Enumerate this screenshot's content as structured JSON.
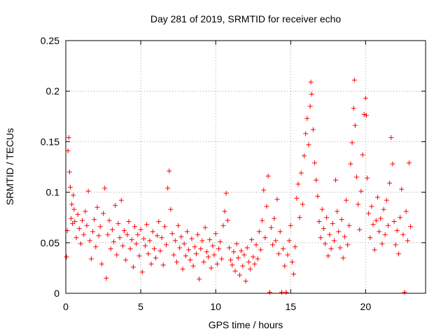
{
  "chart_data": {
    "type": "scatter",
    "title": "Day 281 of 2019, SRMTID for receiver echo",
    "xlabel": "GPS time / hours",
    "ylabel": "SRMTID / TECUs",
    "xlim": [
      0,
      24
    ],
    "ylim": [
      0,
      0.25
    ],
    "x_ticks": [
      0,
      5,
      10,
      15,
      20
    ],
    "x_tick_labels": [
      "0",
      "5",
      "10",
      "15",
      "20"
    ],
    "y_ticks": [
      0,
      0.05,
      0.1,
      0.15,
      0.2,
      0.25
    ],
    "y_tick_labels": [
      "0",
      "0.05",
      "0.1",
      "0.15",
      "0.2",
      "0.25"
    ],
    "grid": true,
    "marker": "+",
    "series": [
      {
        "name": "SRMTID",
        "color": "#ff0000",
        "points": [
          [
            0.05,
            0.036
          ],
          [
            0.1,
            0.062
          ],
          [
            0.15,
            0.141
          ],
          [
            0.2,
            0.154
          ],
          [
            0.25,
            0.12
          ],
          [
            0.3,
            0.105
          ],
          [
            0.35,
            0.074
          ],
          [
            0.4,
            0.088
          ],
          [
            0.45,
            0.069
          ],
          [
            0.5,
            0.097
          ],
          [
            0.55,
            0.083
          ],
          [
            0.6,
            0.071
          ],
          [
            0.7,
            0.055
          ],
          [
            0.8,
            0.078
          ],
          [
            0.9,
            0.064
          ],
          [
            1.0,
            0.049
          ],
          [
            1.1,
            0.072
          ],
          [
            1.2,
            0.058
          ],
          [
            1.3,
            0.081
          ],
          [
            1.4,
            0.067
          ],
          [
            1.5,
            0.101
          ],
          [
            1.6,
            0.052
          ],
          [
            1.7,
            0.034
          ],
          [
            1.8,
            0.061
          ],
          [
            1.9,
            0.073
          ],
          [
            2.0,
            0.046
          ],
          [
            2.1,
            0.085
          ],
          [
            2.2,
            0.057
          ],
          [
            2.3,
            0.066
          ],
          [
            2.4,
            0.029
          ],
          [
            2.5,
            0.079
          ],
          [
            2.6,
            0.104
          ],
          [
            2.7,
            0.015
          ],
          [
            2.8,
            0.058
          ],
          [
            2.9,
            0.072
          ],
          [
            3.0,
            0.044
          ],
          [
            3.1,
            0.063
          ],
          [
            3.2,
            0.051
          ],
          [
            3.3,
            0.087
          ],
          [
            3.4,
            0.038
          ],
          [
            3.5,
            0.069
          ],
          [
            3.6,
            0.055
          ],
          [
            3.7,
            0.092
          ],
          [
            3.8,
            0.047
          ],
          [
            3.9,
            0.062
          ],
          [
            4.0,
            0.033
          ],
          [
            4.1,
            0.058
          ],
          [
            4.2,
            0.071
          ],
          [
            4.3,
            0.044
          ],
          [
            4.4,
            0.053
          ],
          [
            4.5,
            0.026
          ],
          [
            4.6,
            0.066
          ],
          [
            4.7,
            0.049
          ],
          [
            4.8,
            0.058
          ],
          [
            4.9,
            0.037
          ],
          [
            5.0,
            0.063
          ],
          [
            5.1,
            0.021
          ],
          [
            5.2,
            0.054
          ],
          [
            5.3,
            0.047
          ],
          [
            5.4,
            0.068
          ],
          [
            5.5,
            0.039
          ],
          [
            5.6,
            0.052
          ],
          [
            5.7,
            0.029
          ],
          [
            5.8,
            0.061
          ],
          [
            5.9,
            0.044
          ],
          [
            6.0,
            0.035
          ],
          [
            6.1,
            0.057
          ],
          [
            6.2,
            0.071
          ],
          [
            6.3,
            0.042
          ],
          [
            6.4,
            0.055
          ],
          [
            6.5,
            0.028
          ],
          [
            6.6,
            0.066
          ],
          [
            6.7,
            0.048
          ],
          [
            6.8,
            0.104
          ],
          [
            6.9,
            0.121
          ],
          [
            7.0,
            0.083
          ],
          [
            7.1,
            0.059
          ],
          [
            7.2,
            0.038
          ],
          [
            7.3,
            0.052
          ],
          [
            7.4,
            0.031
          ],
          [
            7.5,
            0.067
          ],
          [
            7.6,
            0.045
          ],
          [
            7.7,
            0.056
          ],
          [
            7.8,
            0.024
          ],
          [
            7.9,
            0.049
          ],
          [
            8.0,
            0.037
          ],
          [
            8.1,
            0.061
          ],
          [
            8.2,
            0.043
          ],
          [
            8.3,
            0.033
          ],
          [
            8.4,
            0.054
          ],
          [
            8.5,
            0.027
          ],
          [
            8.6,
            0.046
          ],
          [
            8.7,
            0.039
          ],
          [
            8.8,
            0.058
          ],
          [
            8.9,
            0.014
          ],
          [
            9.0,
            0.044
          ],
          [
            9.1,
            0.052
          ],
          [
            9.2,
            0.031
          ],
          [
            9.3,
            0.065
          ],
          [
            9.4,
            0.041
          ],
          [
            9.5,
            0.036
          ],
          [
            9.6,
            0.053
          ],
          [
            9.7,
            0.025
          ],
          [
            9.8,
            0.047
          ],
          [
            9.9,
            0.038
          ],
          [
            10.0,
            0.059
          ],
          [
            10.1,
            0.029
          ],
          [
            10.2,
            0.044
          ],
          [
            10.3,
            0.051
          ],
          [
            10.4,
            0.034
          ],
          [
            10.5,
            0.067
          ],
          [
            10.6,
            0.081
          ],
          [
            10.7,
            0.099
          ],
          [
            10.8,
            0.072
          ],
          [
            10.9,
            0.045
          ],
          [
            11.0,
            0.033
          ],
          [
            11.1,
            0.028
          ],
          [
            11.2,
            0.041
          ],
          [
            11.3,
            0.022
          ],
          [
            11.4,
            0.049
          ],
          [
            11.5,
            0.035
          ],
          [
            11.6,
            0.018
          ],
          [
            11.7,
            0.042
          ],
          [
            11.8,
            0.027
          ],
          [
            11.9,
            0.038
          ],
          [
            12.0,
            0.012
          ],
          [
            12.1,
            0.045
          ],
          [
            12.2,
            0.031
          ],
          [
            12.3,
            0.024
          ],
          [
            12.4,
            0.053
          ],
          [
            12.5,
            0.036
          ],
          [
            12.6,
            0.029
          ],
          [
            12.7,
            0.048
          ],
          [
            12.8,
            0.034
          ],
          [
            12.9,
            0.061
          ],
          [
            13.0,
            0.043
          ],
          [
            13.1,
            0.072
          ],
          [
            13.2,
            0.102
          ],
          [
            13.3,
            0.055
          ],
          [
            13.4,
            0.086
          ],
          [
            13.5,
            0.116
          ],
          [
            13.6,
            0.001
          ],
          [
            13.7,
            0.065
          ],
          [
            13.8,
            0.048
          ],
          [
            13.9,
            0.074
          ],
          [
            14.0,
            0.052
          ],
          [
            14.1,
            0.093
          ],
          [
            14.2,
            0.039
          ],
          [
            14.3,
            0.061
          ],
          [
            14.4,
            0.001
          ],
          [
            14.5,
            0.044
          ],
          [
            14.6,
            0.027
          ],
          [
            14.7,
            0.001
          ],
          [
            14.8,
            0.038
          ],
          [
            14.9,
            0.052
          ],
          [
            15.0,
            0.067
          ],
          [
            15.1,
            0.031
          ],
          [
            15.2,
            0.019
          ],
          [
            15.3,
            0.046
          ],
          [
            15.4,
            0.094
          ],
          [
            15.5,
            0.108
          ],
          [
            15.6,
            0.075
          ],
          [
            15.7,
            0.119
          ],
          [
            15.8,
            0.088
          ],
          [
            15.9,
            0.136
          ],
          [
            16.0,
            0.158
          ],
          [
            16.1,
            0.173
          ],
          [
            16.2,
            0.147
          ],
          [
            16.3,
            0.185
          ],
          [
            16.35,
            0.209
          ],
          [
            16.4,
            0.197
          ],
          [
            16.5,
            0.162
          ],
          [
            16.6,
            0.129
          ],
          [
            16.7,
            0.112
          ],
          [
            16.8,
            0.096
          ],
          [
            16.9,
            0.071
          ],
          [
            17.0,
            0.055
          ],
          [
            17.1,
            0.083
          ],
          [
            17.2,
            0.064
          ],
          [
            17.3,
            0.049
          ],
          [
            17.4,
            0.075
          ],
          [
            17.5,
            0.037
          ],
          [
            17.6,
            0.058
          ],
          [
            17.7,
            0.044
          ],
          [
            17.8,
            0.069
          ],
          [
            17.9,
            0.052
          ],
          [
            18.0,
            0.112
          ],
          [
            18.1,
            0.081
          ],
          [
            18.2,
            0.061
          ],
          [
            18.3,
            0.045
          ],
          [
            18.4,
            0.073
          ],
          [
            18.5,
            0.035
          ],
          [
            18.6,
            0.056
          ],
          [
            18.7,
            0.092
          ],
          [
            18.8,
            0.048
          ],
          [
            18.9,
            0.067
          ],
          [
            19.0,
            0.128
          ],
          [
            19.1,
            0.149
          ],
          [
            19.2,
            0.183
          ],
          [
            19.25,
            0.211
          ],
          [
            19.3,
            0.166
          ],
          [
            19.4,
            0.115
          ],
          [
            19.5,
            0.088
          ],
          [
            19.6,
            0.063
          ],
          [
            19.7,
            0.101
          ],
          [
            19.8,
            0.137
          ],
          [
            19.9,
            0.177
          ],
          [
            20.0,
            0.193
          ],
          [
            20.05,
            0.176
          ],
          [
            20.1,
            0.114
          ],
          [
            20.2,
            0.079
          ],
          [
            20.3,
            0.055
          ],
          [
            20.4,
            0.086
          ],
          [
            20.5,
            0.068
          ],
          [
            20.6,
            0.043
          ],
          [
            20.7,
            0.072
          ],
          [
            20.8,
            0.095
          ],
          [
            20.9,
            0.061
          ],
          [
            21.0,
            0.074
          ],
          [
            21.1,
            0.049
          ],
          [
            21.2,
            0.083
          ],
          [
            21.3,
            0.058
          ],
          [
            21.4,
            0.092
          ],
          [
            21.5,
            0.067
          ],
          [
            21.6,
            0.109
          ],
          [
            21.7,
            0.154
          ],
          [
            21.8,
            0.128
          ],
          [
            21.9,
            0.071
          ],
          [
            22.0,
            0.048
          ],
          [
            22.1,
            0.062
          ],
          [
            22.2,
            0.039
          ],
          [
            22.3,
            0.075
          ],
          [
            22.4,
            0.103
          ],
          [
            22.5,
            0.058
          ],
          [
            22.6,
            0.001
          ],
          [
            22.7,
            0.081
          ],
          [
            22.8,
            0.052
          ],
          [
            22.9,
            0.129
          ],
          [
            23.0,
            0.066
          ]
        ]
      }
    ]
  }
}
